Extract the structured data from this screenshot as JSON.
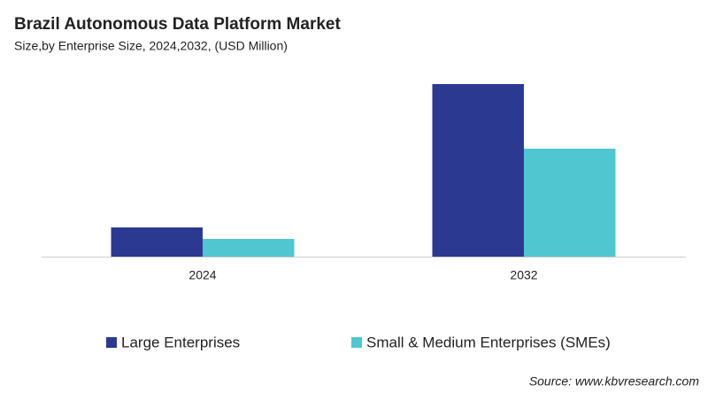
{
  "chart_data": {
    "type": "bar",
    "title": "Brazil Autonomous  Data Platform Market",
    "subtitle": "Size,by Enterprise Size, 2024,2032, (USD Million)",
    "categories": [
      "2024",
      "2032"
    ],
    "series": [
      {
        "name": "Large Enterprises",
        "color": "#2b3990",
        "values": [
          33,
          195
        ]
      },
      {
        "name": "Small & Medium Enterprises (SMEs)",
        "color": "#4fc6d0",
        "values": [
          20,
          122
        ]
      }
    ],
    "ylim": [
      0,
      200
    ],
    "source": "Source: www.kbvresearch.com"
  }
}
